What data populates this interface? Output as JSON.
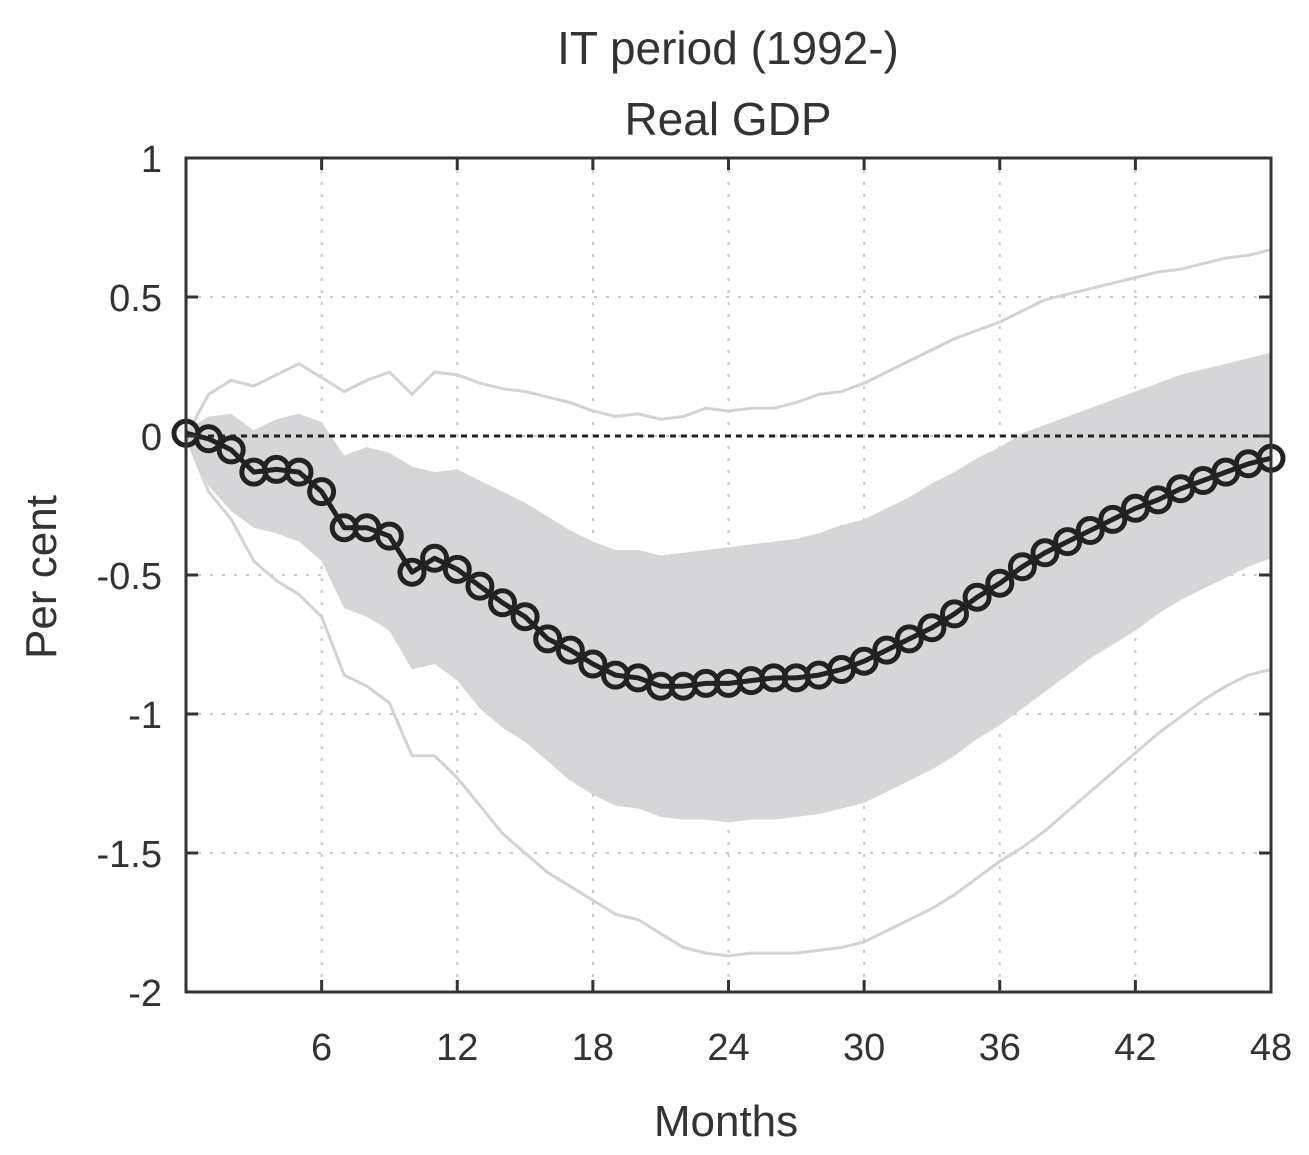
{
  "chart_data": {
    "type": "line",
    "title": [
      "IT period (1992-)",
      "Real GDP"
    ],
    "xlabel": "Months",
    "ylabel": "Per cent",
    "xlim": [
      0,
      48
    ],
    "ylim": [
      -2,
      1
    ],
    "xticks": [
      6,
      12,
      18,
      24,
      30,
      36,
      42,
      48
    ],
    "xtick_labels": [
      "6",
      "12",
      "18",
      "24",
      "30",
      "36",
      "42",
      "48"
    ],
    "yticks": [
      1,
      0.5,
      0,
      -0.5,
      -1,
      -1.5,
      -2
    ],
    "ytick_labels": [
      "1",
      "0.5",
      "0",
      "-0.5",
      "-1",
      "-1.5",
      "-2"
    ],
    "grid": true,
    "zero_line": true,
    "x": [
      0,
      1,
      2,
      3,
      4,
      5,
      6,
      7,
      8,
      9,
      10,
      11,
      12,
      13,
      14,
      15,
      16,
      17,
      18,
      19,
      20,
      21,
      22,
      23,
      24,
      25,
      26,
      27,
      28,
      29,
      30,
      31,
      32,
      33,
      34,
      35,
      36,
      37,
      38,
      39,
      40,
      41,
      42,
      43,
      44,
      45,
      46,
      47,
      48
    ],
    "series": [
      {
        "role": "point_estimate",
        "color": "#222222",
        "marker": "circle",
        "values": [
          0.01,
          -0.01,
          -0.05,
          -0.13,
          -0.12,
          -0.13,
          -0.2,
          -0.33,
          -0.33,
          -0.36,
          -0.49,
          -0.44,
          -0.48,
          -0.54,
          -0.6,
          -0.65,
          -0.73,
          -0.77,
          -0.82,
          -0.86,
          -0.87,
          -0.9,
          -0.9,
          -0.89,
          -0.89,
          -0.88,
          -0.87,
          -0.87,
          -0.86,
          -0.84,
          -0.81,
          -0.77,
          -0.73,
          -0.69,
          -0.64,
          -0.58,
          -0.53,
          -0.47,
          -0.42,
          -0.38,
          -0.34,
          -0.3,
          -0.26,
          -0.23,
          -0.19,
          -0.16,
          -0.13,
          -0.1,
          -0.08
        ]
      }
    ],
    "bands": [
      {
        "role": "inner_band",
        "color": "#d6d6d8",
        "upper": [
          0.02,
          0.07,
          0.08,
          0.02,
          0.06,
          0.08,
          0.05,
          -0.07,
          -0.04,
          -0.06,
          -0.11,
          -0.13,
          -0.12,
          -0.16,
          -0.2,
          -0.24,
          -0.29,
          -0.34,
          -0.38,
          -0.41,
          -0.41,
          -0.43,
          -0.42,
          -0.41,
          -0.4,
          -0.39,
          -0.38,
          -0.37,
          -0.35,
          -0.32,
          -0.3,
          -0.26,
          -0.22,
          -0.17,
          -0.13,
          -0.08,
          -0.04,
          0.01,
          0.04,
          0.07,
          0.1,
          0.13,
          0.16,
          0.19,
          0.22,
          0.24,
          0.26,
          0.28,
          0.3
        ]
      },
      {
        "role": "inner_band_lower",
        "lower": [
          0.0,
          -0.18,
          -0.27,
          -0.33,
          -0.35,
          -0.38,
          -0.45,
          -0.62,
          -0.65,
          -0.7,
          -0.84,
          -0.82,
          -0.88,
          -0.98,
          -1.05,
          -1.1,
          -1.17,
          -1.24,
          -1.29,
          -1.33,
          -1.34,
          -1.37,
          -1.38,
          -1.38,
          -1.39,
          -1.38,
          -1.38,
          -1.37,
          -1.36,
          -1.34,
          -1.32,
          -1.28,
          -1.24,
          -1.2,
          -1.15,
          -1.09,
          -1.04,
          -0.98,
          -0.92,
          -0.86,
          -0.8,
          -0.75,
          -0.7,
          -0.64,
          -0.59,
          -0.55,
          -0.51,
          -0.47,
          -0.44
        ]
      },
      {
        "role": "outer_bound_upper",
        "color": "#d3d3d3",
        "values": [
          0.0,
          0.15,
          0.2,
          0.18,
          0.22,
          0.26,
          0.21,
          0.16,
          0.2,
          0.23,
          0.15,
          0.23,
          0.22,
          0.19,
          0.17,
          0.16,
          0.14,
          0.12,
          0.09,
          0.07,
          0.08,
          0.06,
          0.07,
          0.1,
          0.09,
          0.1,
          0.1,
          0.12,
          0.15,
          0.16,
          0.19,
          0.23,
          0.27,
          0.31,
          0.35,
          0.38,
          0.41,
          0.45,
          0.49,
          0.51,
          0.53,
          0.55,
          0.57,
          0.59,
          0.6,
          0.62,
          0.64,
          0.65,
          0.67
        ]
      },
      {
        "role": "outer_bound_lower",
        "color": "#d3d3d3",
        "values": [
          0.0,
          -0.2,
          -0.3,
          -0.45,
          -0.52,
          -0.57,
          -0.65,
          -0.86,
          -0.9,
          -0.96,
          -1.15,
          -1.15,
          -1.23,
          -1.33,
          -1.43,
          -1.5,
          -1.57,
          -1.62,
          -1.67,
          -1.72,
          -1.74,
          -1.79,
          -1.84,
          -1.86,
          -1.87,
          -1.86,
          -1.86,
          -1.86,
          -1.85,
          -1.84,
          -1.82,
          -1.78,
          -1.74,
          -1.7,
          -1.65,
          -1.59,
          -1.53,
          -1.48,
          -1.42,
          -1.35,
          -1.28,
          -1.21,
          -1.14,
          -1.07,
          -1.01,
          -0.95,
          -0.9,
          -0.86,
          -0.84
        ]
      }
    ]
  }
}
